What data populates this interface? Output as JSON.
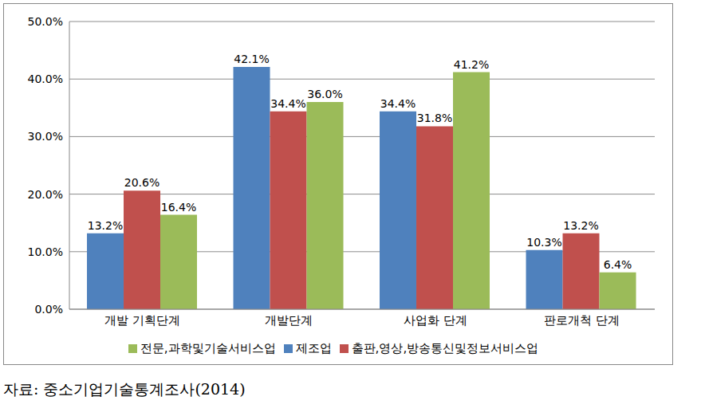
{
  "chart_data": {
    "type": "bar",
    "categories": [
      "개발 기획단계",
      "개발단계",
      "사업화 단계",
      "판로개척 단계"
    ],
    "series": [
      {
        "name": "제조업",
        "color": "#4f81bd",
        "values": [
          13.2,
          42.1,
          34.4,
          10.3
        ],
        "value_labels": [
          "13.2%",
          "42.1%",
          "34.4%",
          "10.3%"
        ]
      },
      {
        "name": "출판,영상,방송통신및정보서비스업",
        "color": "#c0504d",
        "values": [
          20.6,
          34.4,
          31.8,
          13.2
        ],
        "value_labels": [
          "20.6%",
          "34.4%",
          "31.8%",
          "13.2%"
        ]
      },
      {
        "name": "전문,과학및기술서비스업",
        "color": "#9bbb59",
        "values": [
          16.4,
          36.0,
          41.2,
          6.4
        ],
        "value_labels": [
          "16.4%",
          "36.0%",
          "41.2%",
          "6.4%"
        ]
      }
    ],
    "ylim": [
      0,
      50
    ],
    "yticks": [
      {
        "value": 0,
        "label": "0.0%"
      },
      {
        "value": 10,
        "label": "10.0%"
      },
      {
        "value": 20,
        "label": "20.0%"
      },
      {
        "value": 30,
        "label": "30.0%"
      },
      {
        "value": 40,
        "label": "40.0%"
      },
      {
        "value": 50,
        "label": "50.0%"
      }
    ],
    "grid": true,
    "data_labels": true,
    "legend": "bottom",
    "annotation": "자료: 중소기업기술통계조사(2014)"
  }
}
